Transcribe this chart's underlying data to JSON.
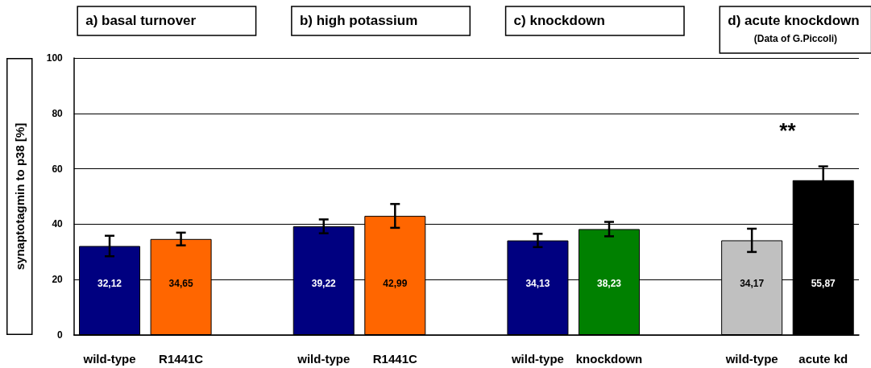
{
  "chart_data": {
    "type": "bar",
    "ylabel": "synaptotagmin to p38 [%]",
    "categories": [
      "wild-type",
      "R1441C",
      null,
      "wild-type",
      "R1441C",
      null,
      "wild-type",
      "knockdown",
      null,
      "wild-type",
      "acute kd"
    ],
    "values": [
      32.12,
      34.65,
      null,
      39.22,
      42.99,
      null,
      34.13,
      38.23,
      null,
      34.17,
      55.87
    ],
    "colors": [
      "#000080",
      "#ff6600",
      "#ffffff",
      "#000080",
      "#ff6600",
      "#ffffff",
      "#000080",
      "#008000",
      "#ffffff",
      "#c0c0c0",
      "#000000"
    ],
    "errors": [
      3.7,
      2.3,
      null,
      2.5,
      4.3,
      null,
      2.4,
      2.6,
      null,
      4.2,
      5
    ],
    "value_labels": [
      "32,12",
      "34,65",
      null,
      "39,22",
      "42,99",
      null,
      "34,13",
      "38,23",
      null,
      "34,17",
      "55,87"
    ],
    "ylim": [
      0,
      100
    ],
    "yticks": [
      0,
      20,
      40,
      60,
      80,
      100
    ],
    "grid": "y",
    "annotations": [
      "a) basal turnover",
      "b) high potassium",
      "c) knockdown",
      "d) acute knockdown\n(Data of G.Piccoli)",
      "**"
    ]
  }
}
